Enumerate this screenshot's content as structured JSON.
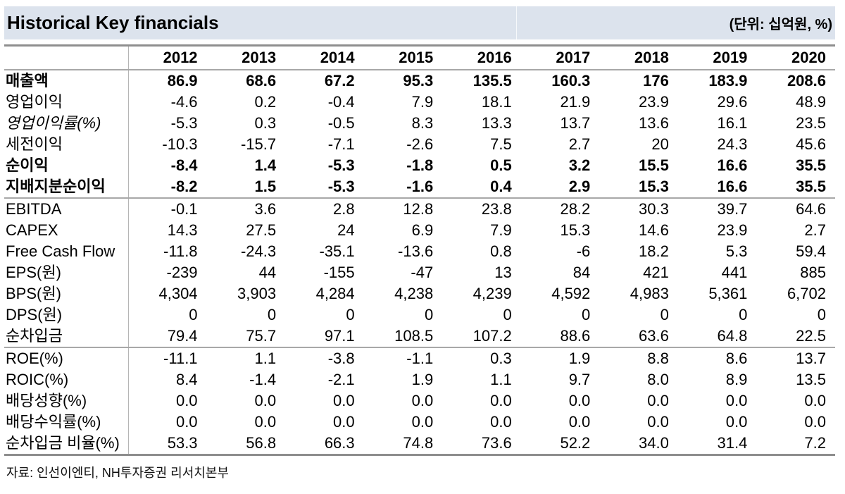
{
  "header": {
    "title": "Historical Key financials",
    "unit": "(단위: 십억원, %)",
    "band_color": "#dce3ed"
  },
  "table": {
    "years": [
      "2012",
      "2013",
      "2014",
      "2015",
      "2016",
      "2017",
      "2018",
      "2019",
      "2020"
    ],
    "sections": [
      {
        "rows": [
          {
            "label": "매출액",
            "bold": true,
            "indent": false,
            "italic": false,
            "values": [
              "86.9",
              "68.6",
              "67.2",
              "95.3",
              "135.5",
              "160.3",
              "176",
              "183.9",
              "208.6"
            ]
          },
          {
            "label": "영업이익",
            "bold": false,
            "indent": false,
            "italic": false,
            "values": [
              "-4.6",
              "0.2",
              "-0.4",
              "7.9",
              "18.1",
              "21.9",
              "23.9",
              "29.6",
              "48.9"
            ]
          },
          {
            "label": "영업이익률(%)",
            "bold": false,
            "indent": true,
            "italic": true,
            "values": [
              "-5.3",
              "0.3",
              "-0.5",
              "8.3",
              "13.3",
              "13.7",
              "13.6",
              "16.1",
              "23.5"
            ]
          },
          {
            "label": "세전이익",
            "bold": false,
            "indent": false,
            "italic": false,
            "values": [
              "-10.3",
              "-15.7",
              "-7.1",
              "-2.6",
              "7.5",
              "2.7",
              "20",
              "24.3",
              "45.6"
            ]
          },
          {
            "label": "순이익",
            "bold": true,
            "indent": false,
            "italic": false,
            "values": [
              "-8.4",
              "1.4",
              "-5.3",
              "-1.8",
              "0.5",
              "3.2",
              "15.5",
              "16.6",
              "35.5"
            ]
          },
          {
            "label": "지배지분순이익",
            "bold": true,
            "indent": true,
            "italic": false,
            "values": [
              "-8.2",
              "1.5",
              "-5.3",
              "-1.6",
              "0.4",
              "2.9",
              "15.3",
              "16.6",
              "35.5"
            ]
          }
        ]
      },
      {
        "rows": [
          {
            "label": "EBITDA",
            "bold": false,
            "indent": false,
            "italic": false,
            "values": [
              "-0.1",
              "3.6",
              "2.8",
              "12.8",
              "23.8",
              "28.2",
              "30.3",
              "39.7",
              "64.6"
            ]
          },
          {
            "label": "CAPEX",
            "bold": false,
            "indent": false,
            "italic": false,
            "values": [
              "14.3",
              "27.5",
              "24",
              "6.9",
              "7.9",
              "15.3",
              "14.6",
              "23.9",
              "2.7"
            ]
          },
          {
            "label": "Free Cash Flow",
            "bold": false,
            "indent": false,
            "italic": false,
            "values": [
              "-11.8",
              "-24.3",
              "-35.1",
              "-13.6",
              "0.8",
              "-6",
              "18.2",
              "5.3",
              "59.4"
            ]
          },
          {
            "label": "EPS(원)",
            "bold": false,
            "indent": false,
            "italic": false,
            "values": [
              "-239",
              "44",
              "-155",
              "-47",
              "13",
              "84",
              "421",
              "441",
              "885"
            ]
          },
          {
            "label": "BPS(원)",
            "bold": false,
            "indent": false,
            "italic": false,
            "values": [
              "4,304",
              "3,903",
              "4,284",
              "4,238",
              "4,239",
              "4,592",
              "4,983",
              "5,361",
              "6,702"
            ]
          },
          {
            "label": "DPS(원)",
            "bold": false,
            "indent": false,
            "italic": false,
            "values": [
              "0",
              "0",
              "0",
              "0",
              "0",
              "0",
              "0",
              "0",
              "0"
            ]
          },
          {
            "label": "순차입금",
            "bold": false,
            "indent": false,
            "italic": false,
            "values": [
              "79.4",
              "75.7",
              "97.1",
              "108.5",
              "107.2",
              "88.6",
              "63.6",
              "64.8",
              "22.5"
            ]
          }
        ]
      },
      {
        "rows": [
          {
            "label": "ROE(%)",
            "bold": false,
            "indent": false,
            "italic": false,
            "values": [
              "-11.1",
              "1.1",
              "-3.8",
              "-1.1",
              "0.3",
              "1.9",
              "8.8",
              "8.6",
              "13.7"
            ]
          },
          {
            "label": "ROIC(%)",
            "bold": false,
            "indent": false,
            "italic": false,
            "values": [
              "8.4",
              "-1.4",
              "-2.1",
              "1.9",
              "1.1",
              "9.7",
              "8.0",
              "8.9",
              "13.5"
            ]
          },
          {
            "label": "배당성향(%)",
            "bold": false,
            "indent": false,
            "italic": false,
            "values": [
              "0.0",
              "0.0",
              "0.0",
              "0.0",
              "0.0",
              "0.0",
              "0.0",
              "0.0",
              "0.0"
            ]
          },
          {
            "label": "배당수익률(%)",
            "bold": false,
            "indent": false,
            "italic": false,
            "values": [
              "0.0",
              "0.0",
              "0.0",
              "0.0",
              "0.0",
              "0.0",
              "0.0",
              "0.0",
              "0.0"
            ]
          },
          {
            "label": "순차입금 비율(%)",
            "bold": false,
            "indent": false,
            "italic": false,
            "values": [
              "53.3",
              "56.8",
              "66.3",
              "74.8",
              "73.6",
              "52.2",
              "34.0",
              "31.4",
              "7.2"
            ]
          }
        ]
      }
    ]
  },
  "footer": {
    "source": "자료: 인선이엔티, NH투자증권 리서치본부"
  }
}
